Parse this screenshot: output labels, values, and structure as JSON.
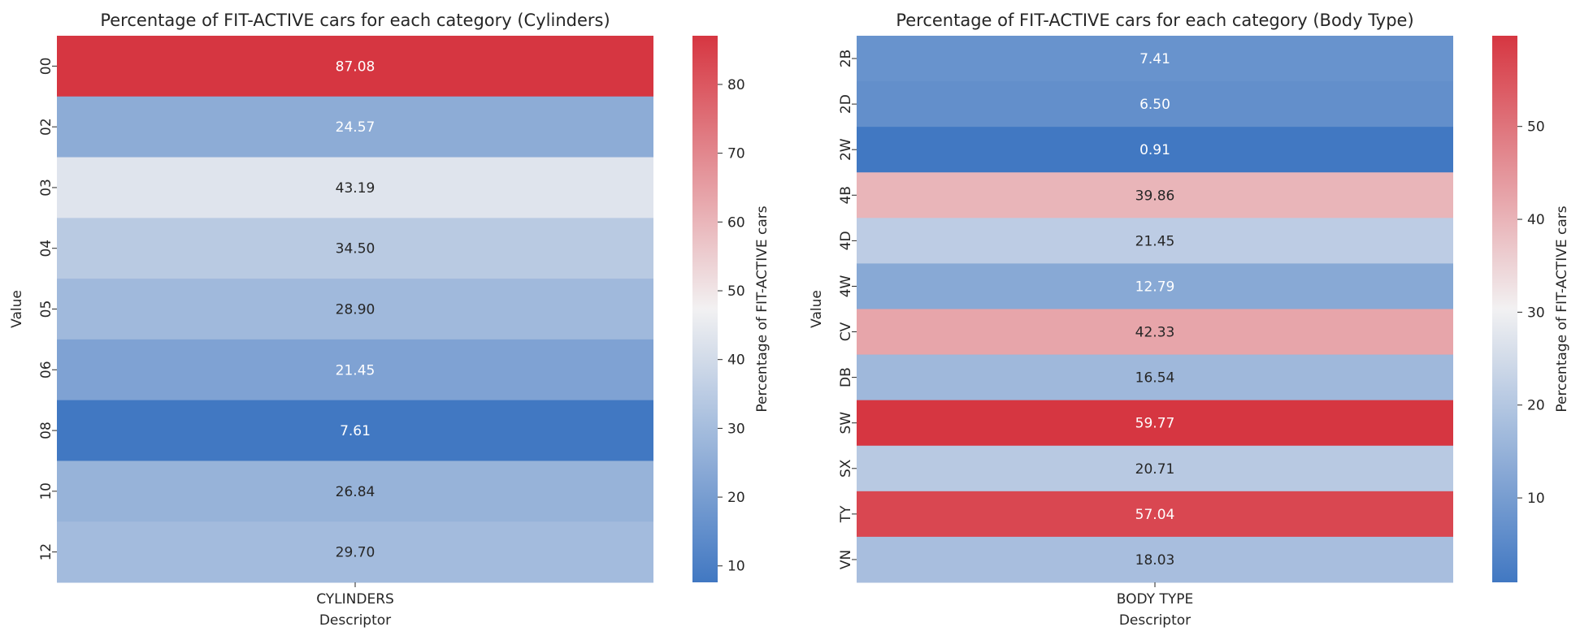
{
  "chart_data": [
    {
      "type": "heatmap",
      "title": "Percentage of FIT-ACTIVE cars for each category (Cylinders)",
      "xlabel": "Descriptor",
      "ylabel": "Value",
      "x_categories": [
        "CYLINDERS"
      ],
      "y_categories": [
        "00",
        "02",
        "03",
        "04",
        "05",
        "06",
        "08",
        "10",
        "12"
      ],
      "values": [
        87.08,
        24.57,
        43.19,
        34.5,
        28.9,
        21.45,
        7.61,
        26.84,
        29.7
      ],
      "value_labels": [
        "87.08",
        "24.57",
        "43.19",
        "34.50",
        "28.90",
        "21.45",
        "7.61",
        "26.84",
        "29.70"
      ],
      "colorbar": {
        "label": "Percentage of FIT-ACTIVE cars",
        "range": [
          7.61,
          87.08
        ],
        "ticks": [
          "10",
          "20",
          "30",
          "40",
          "50",
          "60",
          "70",
          "80"
        ]
      },
      "colormap": {
        "low": "#4178c2",
        "mid": "#f2f1f2",
        "high": "#d63641"
      }
    },
    {
      "type": "heatmap",
      "title": "Percentage of FIT-ACTIVE cars for each category (Body Type)",
      "xlabel": "Descriptor",
      "ylabel": "Value",
      "x_categories": [
        "BODY TYPE"
      ],
      "y_categories": [
        "2B",
        "2D",
        "2W",
        "4B",
        "4D",
        "4W",
        "CV",
        "DB",
        "SW",
        "SX",
        "TY",
        "VN"
      ],
      "values": [
        7.41,
        6.5,
        0.91,
        39.86,
        21.45,
        12.79,
        42.33,
        16.54,
        59.77,
        20.71,
        57.04,
        18.03
      ],
      "value_labels": [
        "7.41",
        "6.50",
        "0.91",
        "39.86",
        "21.45",
        "12.79",
        "42.33",
        "16.54",
        "59.77",
        "20.71",
        "57.04",
        "18.03"
      ],
      "colorbar": {
        "label": "Percentage of FIT-ACTIVE cars",
        "range": [
          0.91,
          59.77
        ],
        "ticks": [
          "10",
          "20",
          "30",
          "40",
          "50"
        ]
      },
      "colormap": {
        "low": "#4178c2",
        "mid": "#f2f1f2",
        "high": "#d63641"
      }
    }
  ]
}
